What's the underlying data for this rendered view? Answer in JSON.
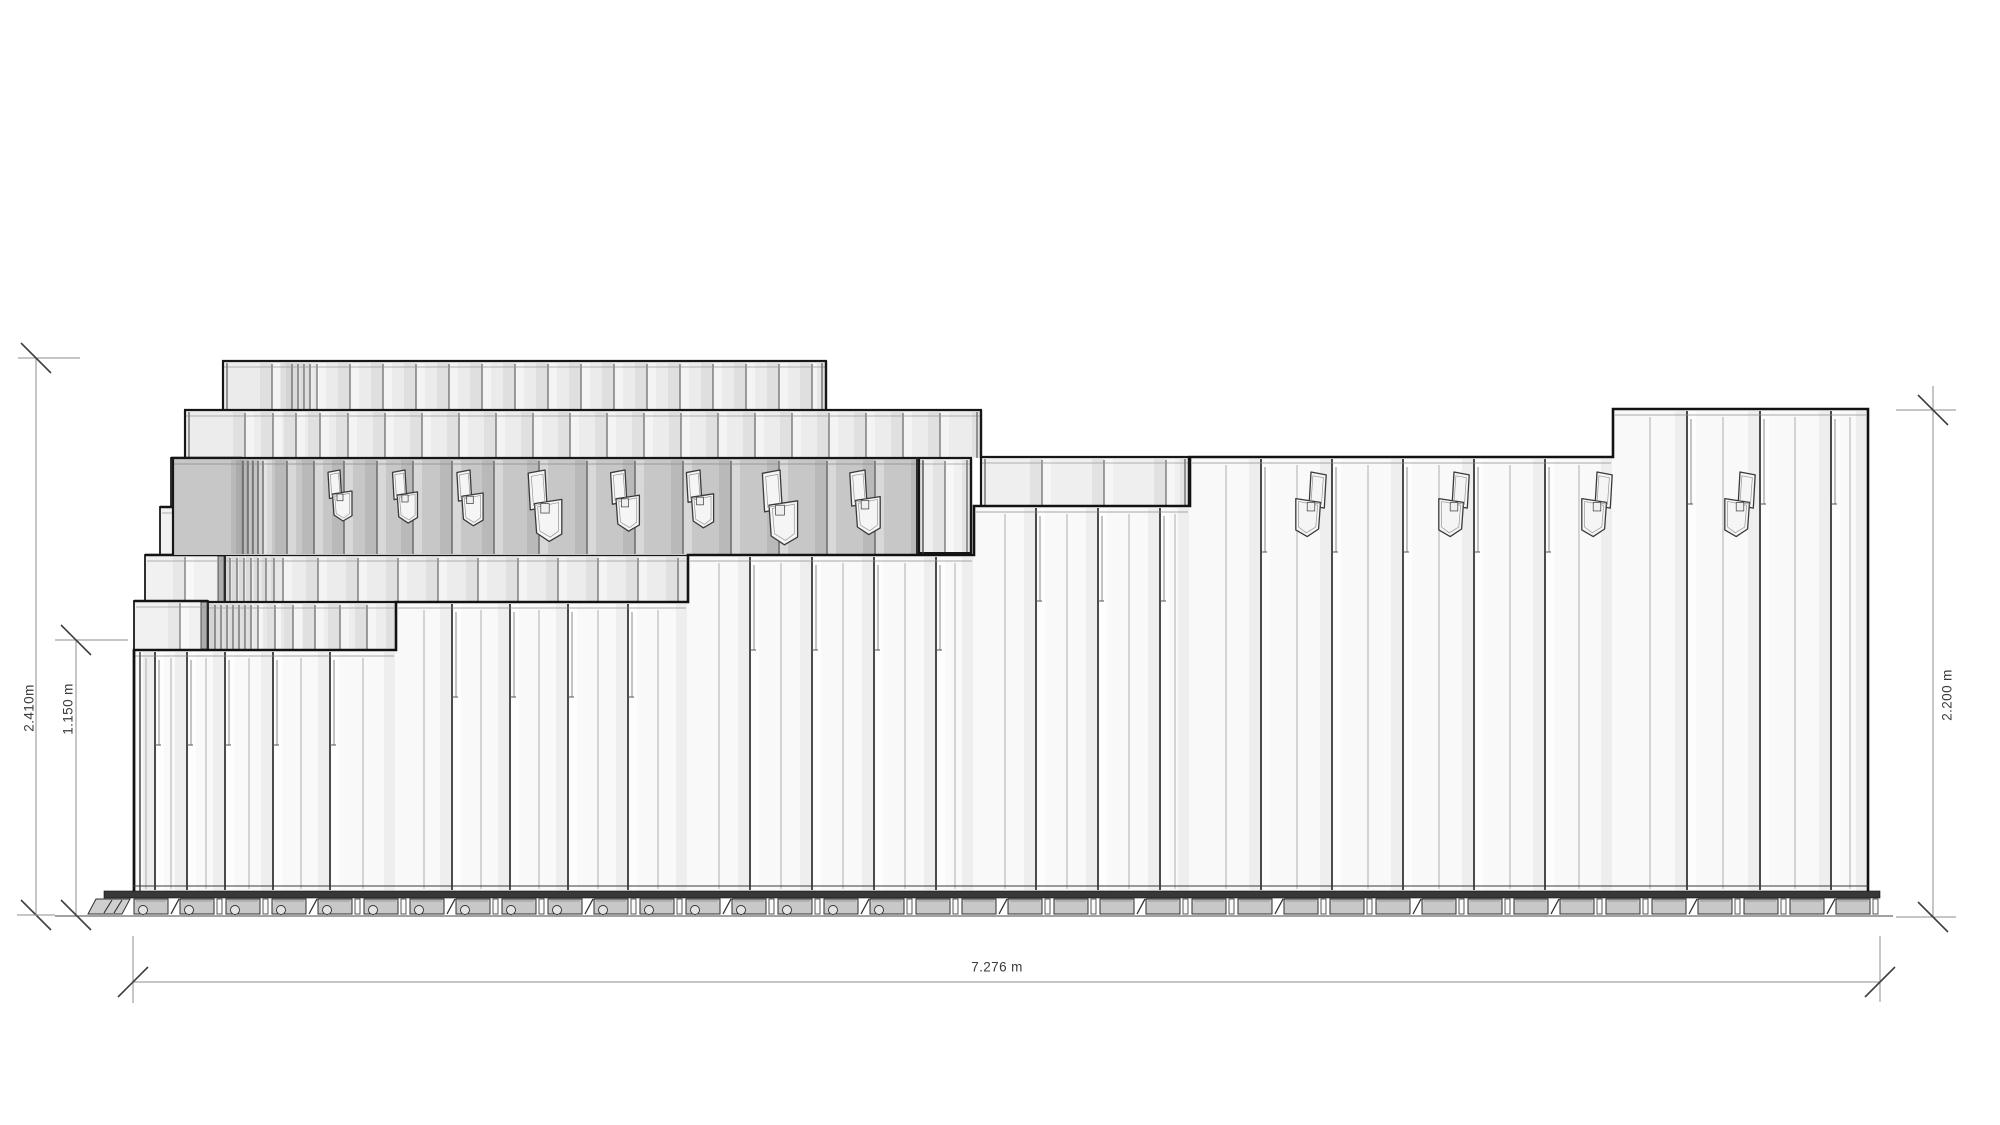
{
  "drawing": {
    "dimensions": {
      "height_total": "2.410m",
      "height_lower": "1.150 m",
      "height_right": "2.200 m",
      "width_bottom": "7.276 m"
    },
    "icons": {
      "hook_bracket": "panel-hook-bracket"
    }
  }
}
